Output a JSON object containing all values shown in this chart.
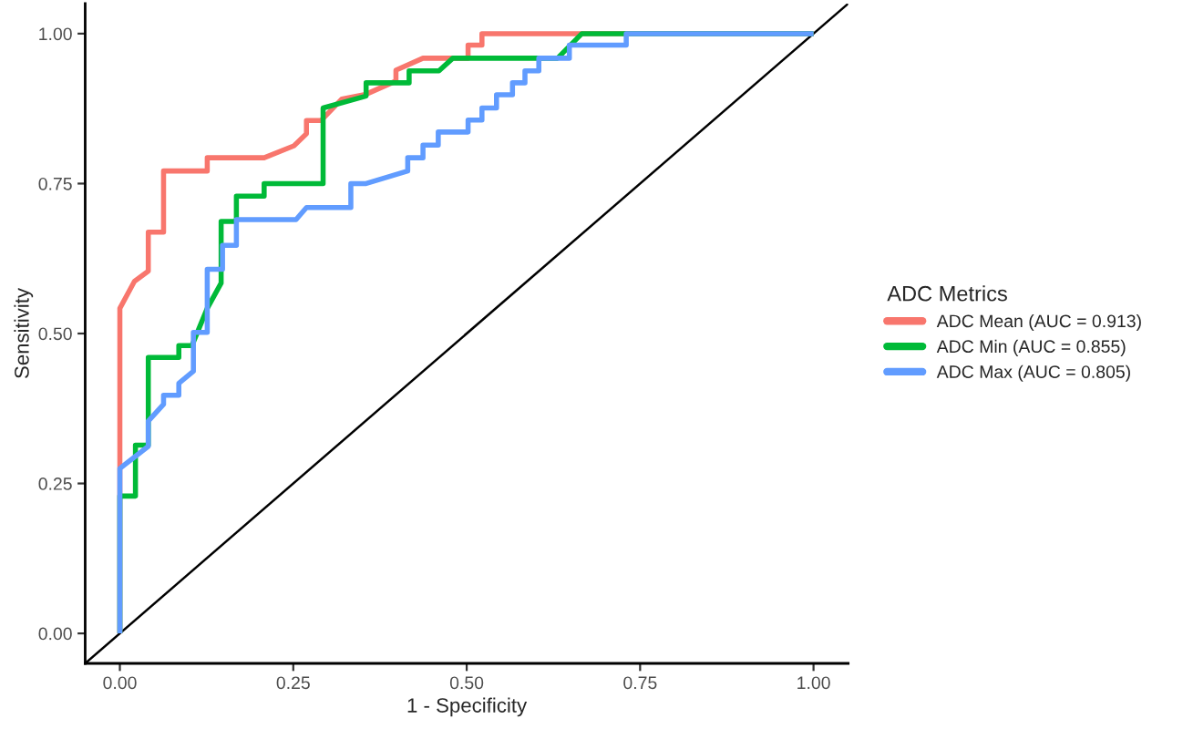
{
  "chart_data": {
    "type": "line",
    "xlabel": "1 - Specificity",
    "ylabel": "Sensitivity",
    "legend_title": "ADC Metrics",
    "legend": "right",
    "grid": false,
    "line_style": "solid",
    "marker": "none",
    "xlim": [
      -0.05,
      1.05
    ],
    "ylim": [
      -0.05,
      1.05
    ],
    "xticks": [
      {
        "value": 0,
        "label": "0.00"
      },
      {
        "value": 0.25,
        "label": "0.25"
      },
      {
        "value": 0.5,
        "label": "0.50"
      },
      {
        "value": 0.75,
        "label": "0.75"
      },
      {
        "value": 1,
        "label": "1.00"
      }
    ],
    "yticks": [
      {
        "value": 0,
        "label": "0.00"
      },
      {
        "value": 0.25,
        "label": "0.25"
      },
      {
        "value": 0.5,
        "label": "0.50"
      },
      {
        "value": 0.75,
        "label": "0.75"
      },
      {
        "value": 1,
        "label": "1.00"
      }
    ],
    "series": [
      {
        "type": "line",
        "color": "#000000",
        "x": [
          -0.05,
          1.05
        ],
        "values": [
          -0.05,
          1.05
        ]
      },
      {
        "name": "ADC Mean (AUC = 0.913)",
        "color": "#f8766d",
        "x": [
          0,
          0,
          0.021,
          0.041,
          0.041,
          0.063,
          0.063,
          0.126,
          0.126,
          0.208,
          0.251,
          0.269,
          0.269,
          0.29,
          0.32,
          0.355,
          0.398,
          0.398,
          0.437,
          0.502,
          0.502,
          0.522,
          0.522,
          1.0
        ],
        "values": [
          0,
          0.542,
          0.587,
          0.604,
          0.669,
          0.669,
          0.771,
          0.771,
          0.793,
          0.793,
          0.813,
          0.833,
          0.855,
          0.855,
          0.891,
          0.899,
          0.921,
          0.939,
          0.959,
          0.959,
          0.981,
          0.981,
          1.0,
          1.0
        ]
      },
      {
        "name": "ADC Min (AUC = 0.855)",
        "color": "#00ba38",
        "x": [
          0,
          0,
          0.0225,
          0.0225,
          0.041,
          0.041,
          0.085,
          0.085,
          0.104,
          0.126,
          0.146,
          0.146,
          0.168,
          0.168,
          0.208,
          0.208,
          0.293,
          0.293,
          0.355,
          0.355,
          0.417,
          0.417,
          0.46,
          0.48,
          0.631,
          0.666,
          1.0
        ],
        "values": [
          0,
          0.229,
          0.229,
          0.314,
          0.314,
          0.46,
          0.46,
          0.48,
          0.48,
          0.542,
          0.584,
          0.687,
          0.687,
          0.729,
          0.729,
          0.75,
          0.75,
          0.876,
          0.896,
          0.918,
          0.918,
          0.938,
          0.938,
          0.959,
          0.959,
          1.0,
          1.0
        ]
      },
      {
        "name": "ADC Max (AUC = 0.805)",
        "color": "#619cff",
        "x": [
          0,
          0,
          0.041,
          0.041,
          0.063,
          0.063,
          0.085,
          0.085,
          0.106,
          0.106,
          0.126,
          0.126,
          0.148,
          0.148,
          0.168,
          0.168,
          0.254,
          0.269,
          0.333,
          0.333,
          0.355,
          0.415,
          0.415,
          0.437,
          0.437,
          0.459,
          0.459,
          0.502,
          0.502,
          0.522,
          0.522,
          0.543,
          0.543,
          0.566,
          0.566,
          0.584,
          0.584,
          0.604,
          0.604,
          0.648,
          0.648,
          0.73,
          0.73,
          1.0
        ],
        "values": [
          0,
          0.275,
          0.312,
          0.354,
          0.382,
          0.397,
          0.397,
          0.417,
          0.437,
          0.502,
          0.502,
          0.607,
          0.607,
          0.647,
          0.647,
          0.69,
          0.69,
          0.71,
          0.71,
          0.75,
          0.75,
          0.771,
          0.793,
          0.793,
          0.814,
          0.814,
          0.836,
          0.836,
          0.856,
          0.856,
          0.876,
          0.876,
          0.898,
          0.898,
          0.918,
          0.918,
          0.938,
          0.938,
          0.959,
          0.959,
          0.981,
          0.981,
          1.0,
          1.0
        ]
      }
    ]
  }
}
